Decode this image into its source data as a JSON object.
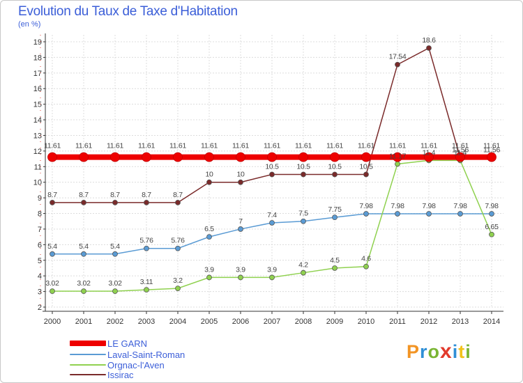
{
  "title": "Evolution du Taux de Taxe d'Habitation",
  "unit_label": "(en %)",
  "logo": {
    "text": "Proxiti"
  },
  "chart_data": {
    "type": "line",
    "title": "Evolution du Taux de Taxe d'Habitation",
    "ylabel": "(en %)",
    "xlabel": "",
    "categories": [
      "2000",
      "2001",
      "2002",
      "2003",
      "2004",
      "2005",
      "2006",
      "2007",
      "2008",
      "2009",
      "2010",
      "2011",
      "2012",
      "2013",
      "2014"
    ],
    "ylim": [
      2,
      19
    ],
    "yticks": [
      2,
      3,
      4,
      5,
      6,
      7,
      8,
      9,
      10,
      11,
      12,
      13,
      14,
      15,
      16,
      17,
      18,
      19
    ],
    "grid": true,
    "legend_position": "bottom-left",
    "series": [
      {
        "name": "LE GARN",
        "color": "#ee0000",
        "thick": true,
        "values": [
          11.61,
          11.61,
          11.61,
          11.61,
          11.61,
          11.61,
          11.61,
          11.61,
          11.61,
          11.61,
          11.61,
          11.61,
          11.61,
          11.61,
          11.61
        ],
        "labels": [
          "11.61",
          "11.61",
          "11.61",
          "11.61",
          "11.61",
          "11.61",
          "11.61",
          "11.61",
          "11.61",
          "11.61",
          "11.61",
          "11.61",
          "11.61",
          "11.61",
          "11.61"
        ]
      },
      {
        "name": "Laval-Saint-Roman",
        "color": "#5a9bd4",
        "values": [
          5.4,
          5.4,
          5.4,
          5.76,
          5.76,
          6.5,
          7,
          7.4,
          7.5,
          7.75,
          7.98,
          7.98,
          7.98,
          7.98,
          7.98
        ],
        "labels": [
          "5.4",
          "5.4",
          "5.4",
          "5.76",
          "5.76",
          "6.5",
          "7",
          "7.4",
          "7.5",
          "7.75",
          "7.98",
          "7.98",
          "7.98",
          "7.98",
          "7.98"
        ]
      },
      {
        "name": "Orgnac-l'Aven",
        "color": "#8fd14f",
        "values": [
          3.02,
          3.02,
          3.02,
          3.11,
          3.2,
          3.9,
          3.9,
          3.9,
          4.2,
          4.5,
          4.6,
          11.17,
          11.4,
          11.4,
          6.65
        ],
        "labels": [
          "3.02",
          "3.02",
          "3.02",
          "3.11",
          "3.2",
          "3.9",
          "3.9",
          "3.9",
          "4.2",
          "4.5",
          "4.6",
          "11.17",
          "11.4",
          "11.4",
          "6.65"
        ]
      },
      {
        "name": "Issirac",
        "color": "#7a2a2a",
        "values": [
          8.7,
          8.7,
          8.7,
          8.7,
          8.7,
          10,
          10,
          10.5,
          10.5,
          10.5,
          10.5,
          17.54,
          18.6,
          11.56,
          11.56
        ],
        "labels": [
          "8.7",
          "8.7",
          "8.7",
          "8.7",
          "8.7",
          "10",
          "10",
          "10.5",
          "10.5",
          "10.5",
          "10.5",
          "17.54",
          "18.6",
          "11.56",
          "11.56"
        ]
      }
    ]
  }
}
